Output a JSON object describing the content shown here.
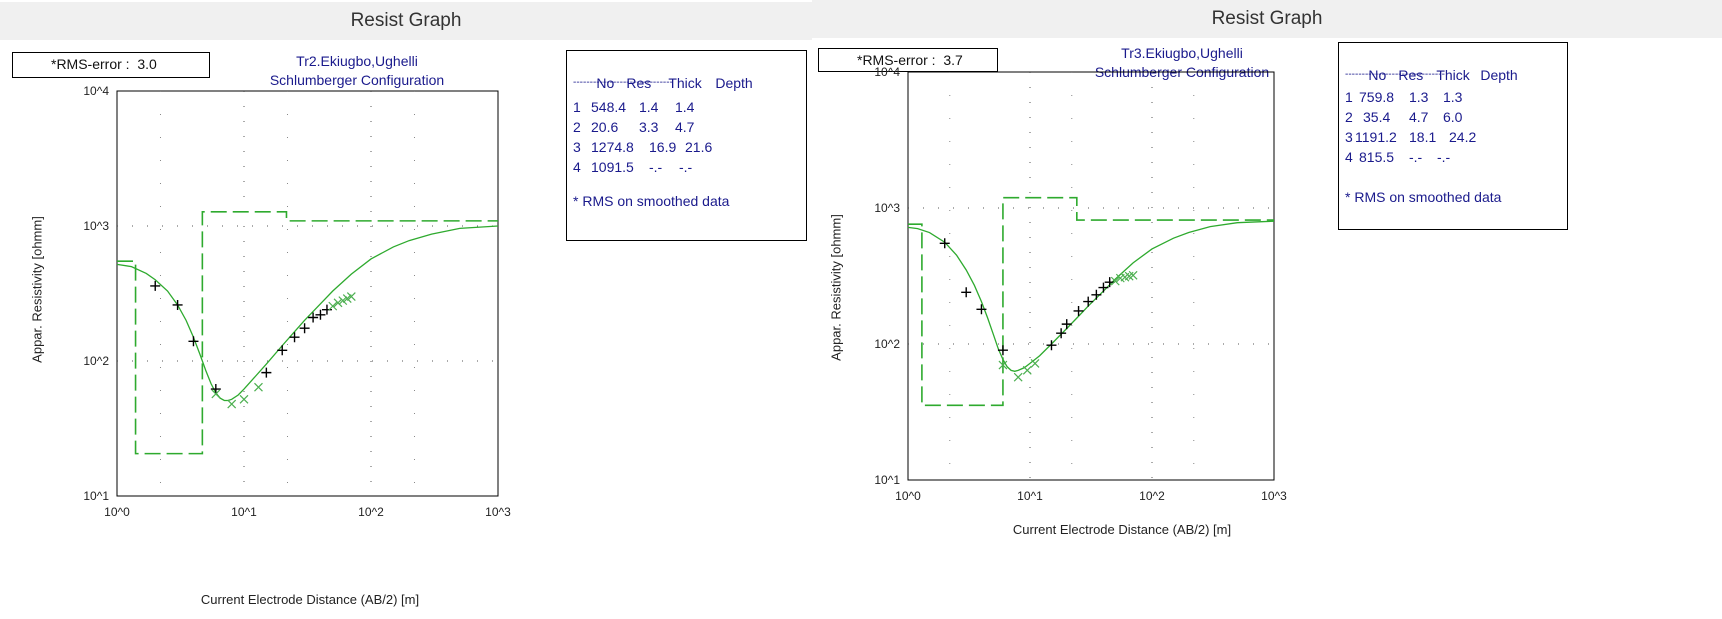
{
  "chart_data": [
    {
      "type": "line",
      "window_title": "Resist Graph",
      "title": "Tr2.Ekiugbo,Ughelli",
      "subtitle": "Schlumberger Configuration",
      "rms_label": "*RMS-error :",
      "rms_value": "3.0",
      "xlabel": "Current Electrode Distance (AB/2) [m]",
      "ylabel": "Appar. Resistivity [ohmm]",
      "x_scale": "log",
      "y_scale": "log",
      "xlim": [
        1,
        1000
      ],
      "ylim": [
        10,
        10000
      ],
      "x_tick_labels": [
        "10^0",
        "10^1",
        "10^2",
        "10^3"
      ],
      "y_tick_labels": [
        "10^1",
        "10^2",
        "10^3",
        "10^4"
      ],
      "grid": "dotted",
      "colors": {
        "model": "#2eaa2e",
        "observed": "#000000",
        "smoothed": "#4caf50",
        "legend_text": "#1a1a8c"
      },
      "layer_table": {
        "headers": [
          "No",
          "Res",
          "Thick",
          "Depth"
        ],
        "separator": "------------------------------",
        "rows": [
          [
            "1",
            "548.4",
            "1.4",
            "1.4"
          ],
          [
            "2",
            "20.6",
            "3.3",
            "4.7"
          ],
          [
            "3",
            "1274.8",
            "16.9",
            "21.6"
          ],
          [
            "4",
            "1091.5",
            "-.-",
            "-.-"
          ]
        ],
        "note": "* RMS on smoothed data"
      },
      "series": [
        {
          "kind": "fitted-curve",
          "x": [
            1,
            1.3,
            1.7,
            2,
            2.5,
            3,
            3.5,
            4,
            4.5,
            5,
            5.5,
            6,
            6.5,
            7,
            7.5,
            8,
            9,
            10,
            12,
            15,
            20,
            25,
            30,
            40,
            50,
            70,
            100,
            150,
            200,
            300,
            500,
            1000
          ],
          "y": [
            520,
            500,
            445,
            400,
            330,
            260,
            200,
            150,
            112,
            85,
            68,
            58,
            53,
            51,
            51,
            52,
            56,
            62,
            75,
            95,
            130,
            165,
            200,
            265,
            330,
            440,
            570,
            700,
            780,
            870,
            960,
            1000
          ]
        },
        {
          "kind": "layer-model",
          "x": [
            1,
            1.4,
            1.4,
            4.7,
            4.7,
            21.6,
            21.6,
            1000
          ],
          "y": [
            548.4,
            548.4,
            20.6,
            20.6,
            1274.8,
            1274.8,
            1091.5,
            1091.5
          ]
        },
        {
          "kind": "observed",
          "x": [
            2,
            3,
            4,
            6,
            15,
            20,
            25,
            30,
            35,
            40,
            45
          ],
          "y": [
            360,
            260,
            140,
            62,
            82,
            120,
            150,
            175,
            210,
            220,
            240
          ]
        },
        {
          "kind": "smoothed",
          "x": [
            6,
            8,
            10,
            13,
            50,
            55,
            60,
            65,
            70
          ],
          "y": [
            57,
            48,
            52,
            64,
            255,
            270,
            280,
            290,
            300
          ]
        }
      ]
    },
    {
      "type": "line",
      "window_title": "Resist Graph",
      "title": "Tr3.Ekiugbo,Ughelli",
      "subtitle": "Schlumberger Configuration",
      "rms_label": "*RMS-error :",
      "rms_value": "3.7",
      "xlabel": "Current Electrode Distance (AB/2) [m]",
      "ylabel": "Appar. Resistivity [ohmm]",
      "x_scale": "log",
      "y_scale": "log",
      "xlim": [
        1,
        1000
      ],
      "ylim": [
        10,
        10000
      ],
      "x_tick_labels": [
        "10^0",
        "10^1",
        "10^2",
        "10^3"
      ],
      "y_tick_labels": [
        "10^1",
        "10^2",
        "10^3",
        "10^4"
      ],
      "grid": "dotted",
      "colors": {
        "model": "#2eaa2e",
        "observed": "#000000",
        "smoothed": "#4caf50",
        "legend_text": "#1a1a8c"
      },
      "layer_table": {
        "headers": [
          "No",
          "Res",
          "Thick",
          "Depth"
        ],
        "separator": "------------------------------",
        "rows": [
          [
            "1",
            "759.8",
            "1.3",
            "1.3"
          ],
          [
            "2",
            "35.4",
            "4.7",
            "6.0"
          ],
          [
            "3",
            "1191.2",
            "18.1",
            "24.2"
          ],
          [
            "4",
            "815.5",
            "-.-",
            "-.-"
          ]
        ],
        "note": "* RMS on smoothed data"
      },
      "series": [
        {
          "kind": "fitted-curve",
          "x": [
            1,
            1.2,
            1.5,
            2,
            2.5,
            3,
            3.5,
            4,
            4.5,
            5,
            5.5,
            6,
            6.5,
            7,
            7.5,
            8,
            9,
            10,
            12,
            15,
            20,
            25,
            30,
            40,
            50,
            70,
            100,
            150,
            200,
            300,
            500,
            1000
          ],
          "y": [
            720,
            705,
            660,
            560,
            450,
            350,
            270,
            205,
            155,
            118,
            92,
            77,
            68,
            64,
            63,
            64,
            67,
            72,
            82,
            100,
            130,
            160,
            190,
            245,
            300,
            395,
            500,
            600,
            660,
            730,
            780,
            800
          ]
        },
        {
          "kind": "layer-model",
          "x": [
            1,
            1.3,
            1.3,
            6.0,
            6.0,
            24.2,
            24.2,
            1000
          ],
          "y": [
            759.8,
            759.8,
            35.4,
            35.4,
            1191.2,
            1191.2,
            815.5,
            815.5
          ]
        },
        {
          "kind": "observed",
          "x": [
            2,
            3,
            4,
            6,
            15,
            18,
            20,
            25,
            30,
            35,
            40,
            45
          ],
          "y": [
            550,
            240,
            180,
            90,
            98,
            120,
            140,
            175,
            205,
            230,
            260,
            285
          ]
        },
        {
          "kind": "smoothed",
          "x": [
            6,
            8,
            9.5,
            11,
            50,
            55,
            60,
            65,
            70
          ],
          "y": [
            70,
            57,
            64,
            72,
            290,
            305,
            310,
            315,
            320
          ]
        }
      ]
    }
  ]
}
